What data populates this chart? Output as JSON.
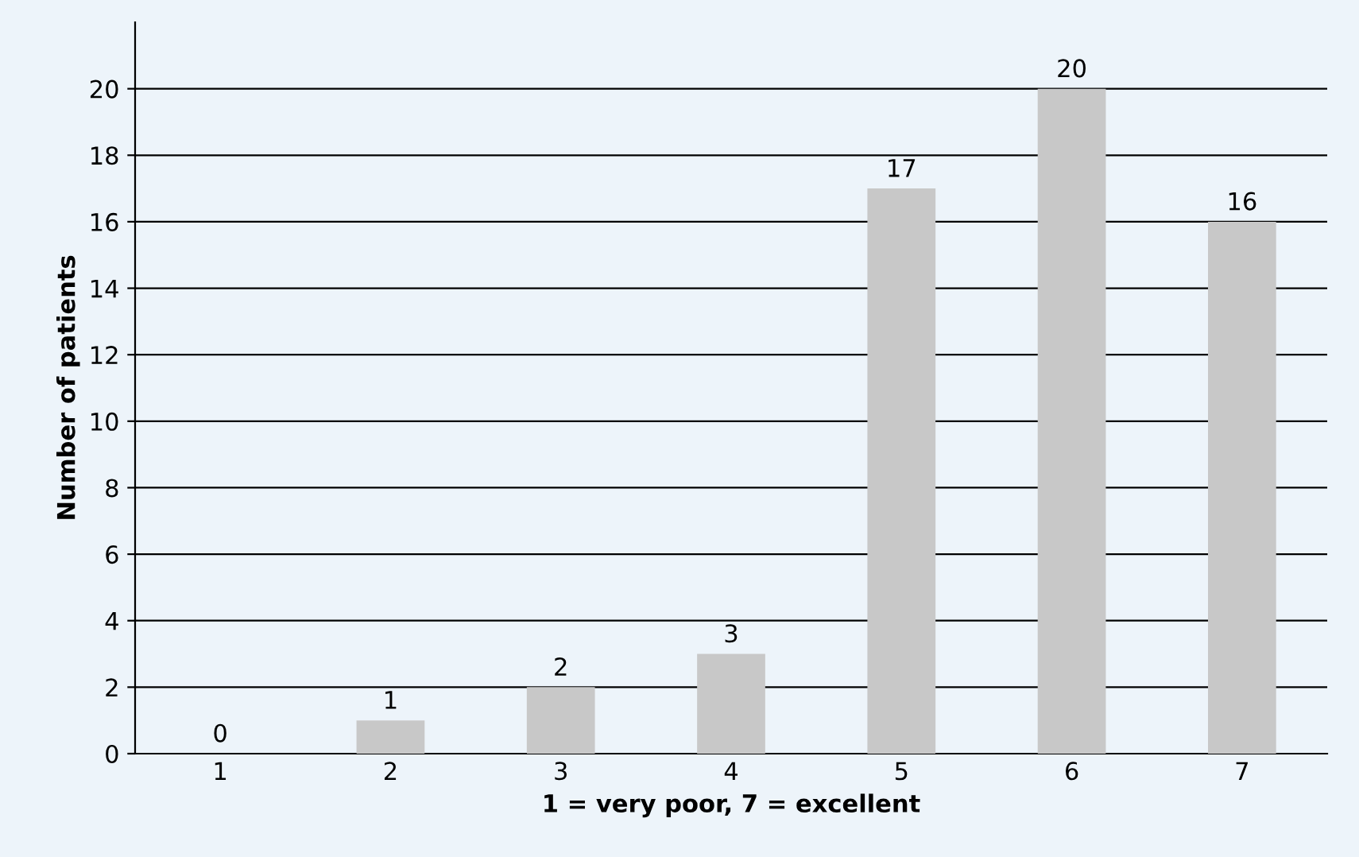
{
  "chart_data": {
    "type": "bar",
    "xlabel": "1 = very poor, 7 = excellent",
    "ylabel": "Number of patients",
    "categories": [
      "1",
      "2",
      "3",
      "4",
      "5",
      "6",
      "7"
    ],
    "values": [
      0,
      1,
      2,
      3,
      17,
      20,
      16
    ],
    "color": "#c8c8c8",
    "ylim": [
      0,
      22
    ],
    "yticks": [
      0,
      2,
      4,
      6,
      8,
      10,
      12,
      14,
      16,
      18,
      20
    ],
    "grid": "y",
    "data_labels": true
  }
}
